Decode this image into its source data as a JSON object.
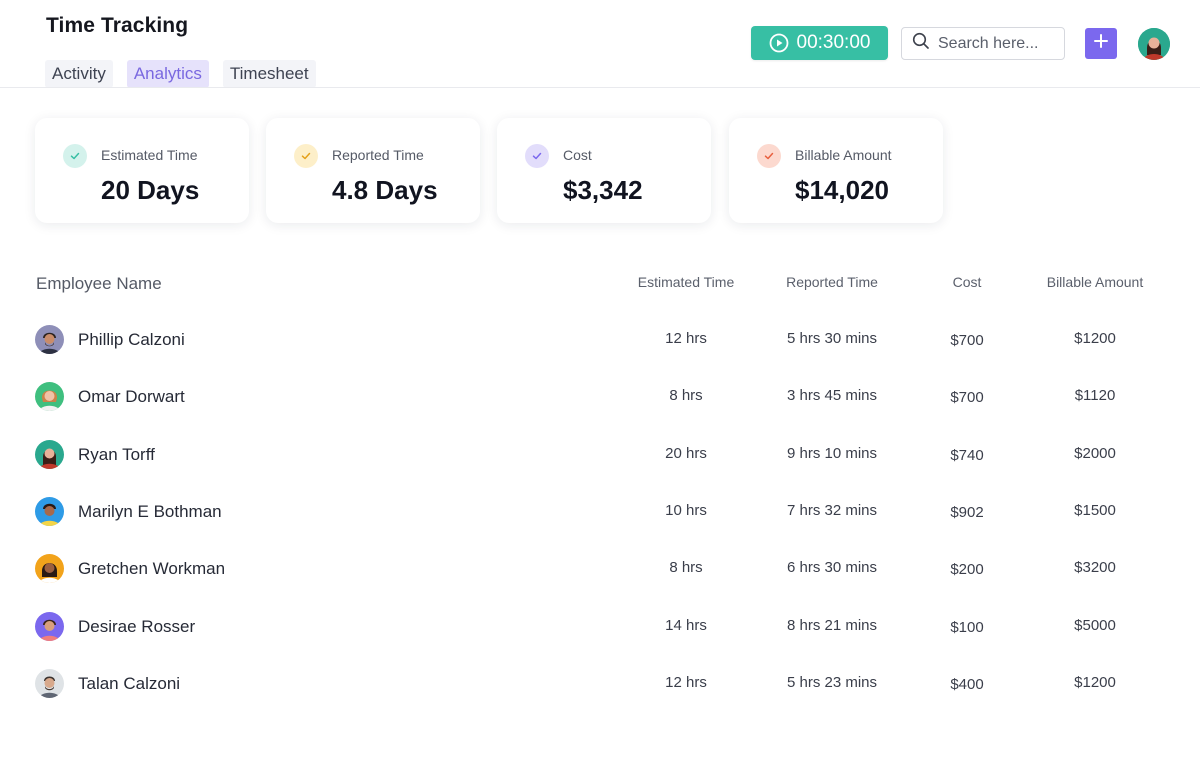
{
  "app": {
    "title": "Time Tracking"
  },
  "tabs": [
    {
      "label": "Activity",
      "active": false
    },
    {
      "label": "Analytics",
      "active": true
    },
    {
      "label": "Timesheet",
      "active": false
    }
  ],
  "header": {
    "timer_label": "00:30:00",
    "search_placeholder": "Search here...",
    "add_icon": "plus-icon",
    "colors": {
      "timer": "#37bfa4",
      "add_button": "#7b68ee"
    }
  },
  "stats": [
    {
      "label": "Estimated Time",
      "value": "20 Days",
      "icon": "check-icon",
      "color": "#37bfa4"
    },
    {
      "label": "Reported Time",
      "value": "4.8 Days",
      "icon": "check-icon",
      "color": "#f2b632"
    },
    {
      "label": "Cost",
      "value": "$3,342",
      "icon": "check-icon",
      "color": "#7b68ee"
    },
    {
      "label": "Billable Amount",
      "value": "$14,020",
      "icon": "check-icon",
      "color": "#f0785a"
    }
  ],
  "table": {
    "headers": {
      "name": "Employee Name",
      "estimated": "Estimated Time",
      "reported": "Reported Time",
      "cost": "Cost",
      "billable": "Billable Amount"
    },
    "rows": [
      {
        "name": "Phillip Calzoni",
        "estimated": "12 hrs",
        "reported": "5 hrs 30 mins",
        "cost": "$700",
        "billable": "$1200"
      },
      {
        "name": "Omar Dorwart",
        "estimated": "8 hrs",
        "reported": "3 hrs 45 mins",
        "cost": "$700",
        "billable": "$1120"
      },
      {
        "name": "Ryan Torff",
        "estimated": "20 hrs",
        "reported": "9 hrs 10 mins",
        "cost": "$740",
        "billable": "$2000"
      },
      {
        "name": "Marilyn E Bothman",
        "estimated": "10 hrs",
        "reported": "7 hrs 32 mins",
        "cost": "$902",
        "billable": "$1500"
      },
      {
        "name": "Gretchen Workman",
        "estimated": "8 hrs",
        "reported": "6 hrs 30 mins",
        "cost": "$200",
        "billable": "$3200"
      },
      {
        "name": "Desirae Rosser",
        "estimated": "14 hrs",
        "reported": "8 hrs 21 mins",
        "cost": "$100",
        "billable": "$5000"
      },
      {
        "name": "Talan Calzoni",
        "estimated": "12 hrs",
        "reported": "5 hrs 23 mins",
        "cost": "$400",
        "billable": "$1200"
      }
    ]
  }
}
